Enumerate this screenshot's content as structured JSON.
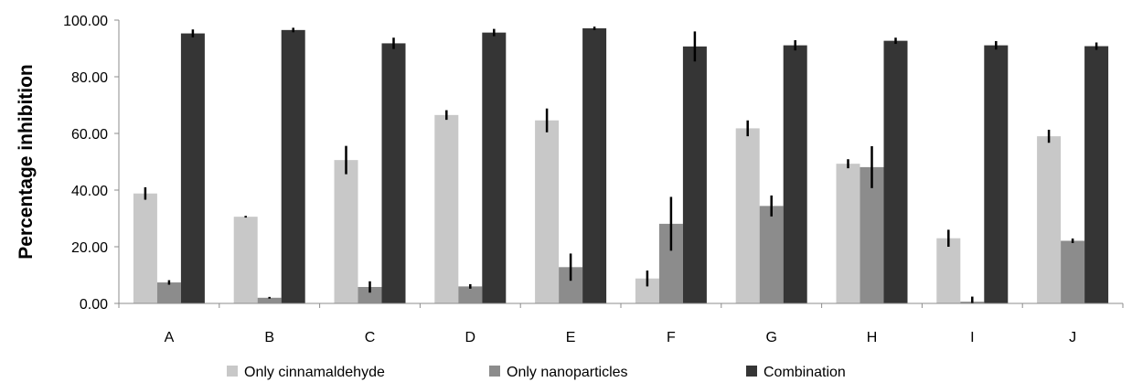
{
  "chart_data": {
    "type": "bar",
    "title": "",
    "xlabel": "",
    "ylabel": "Percentage inhibition",
    "ylim": [
      0,
      100
    ],
    "yticks": [
      "0.00",
      "20.00",
      "40.00",
      "60.00",
      "80.00",
      "100.00"
    ],
    "categories": [
      "A",
      "B",
      "C",
      "D",
      "E",
      "F",
      "G",
      "H",
      "I",
      "J"
    ],
    "grid": false,
    "legend_position": "bottom",
    "series": [
      {
        "name": "Only cinnamaldehyde",
        "color": "#c8c8c8",
        "values": [
          38.8,
          30.6,
          50.6,
          66.5,
          64.6,
          8.8,
          61.8,
          49.3,
          23.0,
          59.0
        ],
        "errors": [
          2.2,
          0.3,
          5.0,
          1.7,
          4.2,
          2.8,
          2.8,
          1.6,
          3.0,
          2.3
        ]
      },
      {
        "name": "Only nanoparticles",
        "color": "#8c8c8c",
        "values": [
          7.4,
          2.0,
          5.8,
          6.0,
          12.8,
          28.1,
          34.4,
          48.1,
          0.6,
          22.1
        ],
        "errors": [
          0.8,
          0.3,
          2.0,
          0.8,
          4.8,
          9.5,
          3.7,
          7.4,
          1.8,
          0.8
        ]
      },
      {
        "name": "Combination",
        "color": "#353535",
        "values": [
          95.3,
          96.5,
          91.8,
          95.6,
          97.1,
          90.7,
          91.1,
          92.7,
          91.1,
          90.8
        ],
        "errors": [
          1.4,
          0.8,
          2.0,
          1.3,
          0.6,
          5.3,
          1.8,
          1.1,
          1.5,
          1.3
        ]
      }
    ]
  }
}
